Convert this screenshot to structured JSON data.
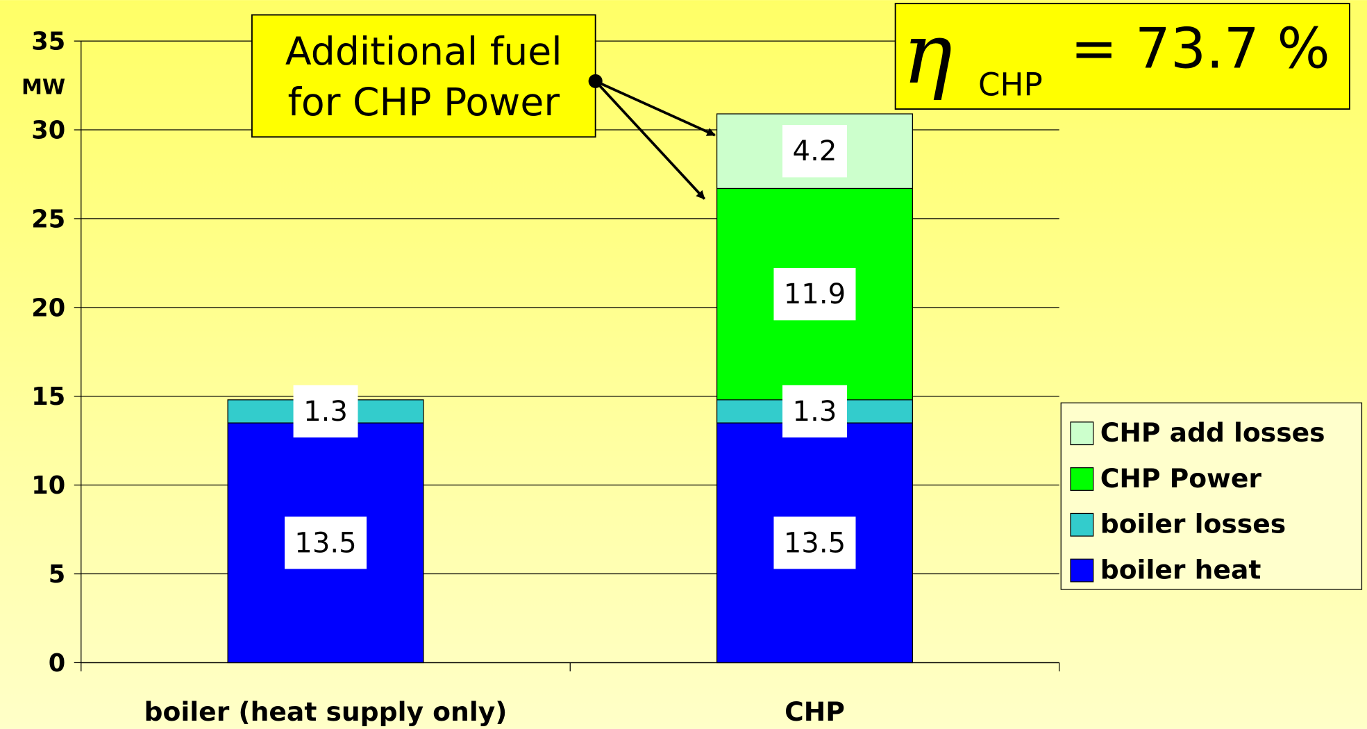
{
  "chart_data": {
    "type": "stacked_bar",
    "y_unit": "MW",
    "categories": [
      "boiler (heat supply only)",
      "CHP"
    ],
    "series": [
      {
        "name": "boiler heat",
        "color": "#0000ff",
        "values": [
          13.5,
          13.5
        ]
      },
      {
        "name": "boiler losses",
        "color": "#33cccc",
        "values": [
          1.3,
          1.3
        ]
      },
      {
        "name": "CHP Power",
        "color": "#00ff00",
        "values": [
          null,
          11.9
        ]
      },
      {
        "name": "CHP add losses",
        "color": "#ccffcc",
        "values": [
          null,
          4.2
        ]
      }
    ],
    "ylim": [
      0,
      35
    ],
    "yticks": [
      0,
      5,
      10,
      15,
      20,
      25,
      30,
      35
    ],
    "grid": true,
    "legend": "right",
    "annotation": {
      "lines": [
        "Additional fuel",
        "for CHP Power"
      ]
    },
    "efficiency": {
      "symbol": "η",
      "subscript": "CHP",
      "text": "= 73.7 %"
    }
  }
}
